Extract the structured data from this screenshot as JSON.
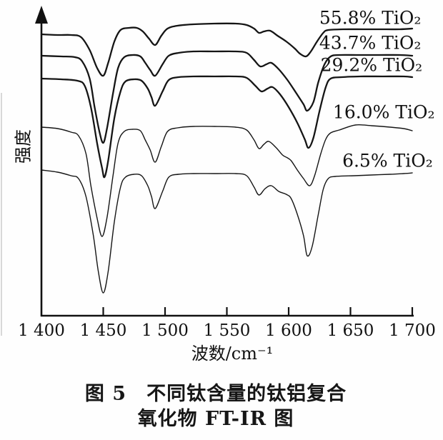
{
  "figure": {
    "caption_line1": "图 5　不同钛含量的钛铝复合",
    "caption_line2": "氧化物 FT-IR 图"
  },
  "chart_data": {
    "type": "line",
    "title": "",
    "xlabel": "波数/cm⁻¹",
    "ylabel": "强度",
    "xlim": [
      1400,
      1700
    ],
    "ylim": [
      0,
      440
    ],
    "y_units": "arbitrary intensity (no scale shown)",
    "grid": false,
    "legend_position": "labels-on-curves",
    "x_tick_labels": [
      "1 400",
      "1 450",
      "1 500",
      "1 550",
      "1 600",
      "1 650",
      "1 700"
    ],
    "x_tick_values": [
      1400,
      1450,
      1500,
      1550,
      1600,
      1650,
      1700
    ],
    "x_tick_marks": [
      1450,
      1500,
      1550,
      1600,
      1650,
      1700
    ],
    "line_color": "#151515",
    "series": [
      {
        "name": "55.8% TiO₂",
        "stroke_width": 2.3,
        "label_anchor": {
          "x": 1666,
          "y": 415
        },
        "points": [
          [
            1400,
            394
          ],
          [
            1413,
            393
          ],
          [
            1424,
            393
          ],
          [
            1432,
            390
          ],
          [
            1439,
            372
          ],
          [
            1445,
            347
          ],
          [
            1450,
            336
          ],
          [
            1454,
            354
          ],
          [
            1459,
            384
          ],
          [
            1464,
            400
          ],
          [
            1471,
            403
          ],
          [
            1477,
            403
          ],
          [
            1482,
            398
          ],
          [
            1487,
            388
          ],
          [
            1492,
            379
          ],
          [
            1497,
            392
          ],
          [
            1502,
            402
          ],
          [
            1510,
            406
          ],
          [
            1523,
            408
          ],
          [
            1540,
            409
          ],
          [
            1557,
            409
          ],
          [
            1566,
            407
          ],
          [
            1572,
            402
          ],
          [
            1576,
            396
          ],
          [
            1580,
            398
          ],
          [
            1585,
            399
          ],
          [
            1591,
            392
          ],
          [
            1598,
            384
          ],
          [
            1605,
            374
          ],
          [
            1609,
            367
          ],
          [
            1614,
            363
          ],
          [
            1618,
            370
          ],
          [
            1623,
            384
          ],
          [
            1628,
            396
          ],
          [
            1632,
            400
          ],
          [
            1644,
            401
          ],
          [
            1661,
            401
          ],
          [
            1679,
            401
          ],
          [
            1690,
            401
          ],
          [
            1700,
            402
          ]
        ]
      },
      {
        "name": "43.7% TiO₂",
        "stroke_width": 2.3,
        "label_anchor": {
          "x": 1666,
          "y": 380
        },
        "points": [
          [
            1400,
            364
          ],
          [
            1416,
            363
          ],
          [
            1427,
            362
          ],
          [
            1433,
            356
          ],
          [
            1439,
            332
          ],
          [
            1443,
            292
          ],
          [
            1447,
            257
          ],
          [
            1450,
            242
          ],
          [
            1453,
            262
          ],
          [
            1458,
            312
          ],
          [
            1462,
            347
          ],
          [
            1467,
            362
          ],
          [
            1474,
            365
          ],
          [
            1480,
            363
          ],
          [
            1484,
            354
          ],
          [
            1488,
            344
          ],
          [
            1492,
            336
          ],
          [
            1498,
            352
          ],
          [
            1503,
            364
          ],
          [
            1511,
            368
          ],
          [
            1523,
            370
          ],
          [
            1540,
            370
          ],
          [
            1557,
            370
          ],
          [
            1566,
            368
          ],
          [
            1572,
            358
          ],
          [
            1577,
            349
          ],
          [
            1582,
            352
          ],
          [
            1586,
            354
          ],
          [
            1592,
            345
          ],
          [
            1599,
            330
          ],
          [
            1606,
            312
          ],
          [
            1612,
            296
          ],
          [
            1615,
            287
          ],
          [
            1620,
            299
          ],
          [
            1624,
            327
          ],
          [
            1629,
            352
          ],
          [
            1634,
            363
          ],
          [
            1641,
            365
          ],
          [
            1656,
            365
          ],
          [
            1673,
            365
          ],
          [
            1690,
            365
          ],
          [
            1700,
            364
          ]
        ]
      },
      {
        "name": "29.2% TiO₂",
        "stroke_width": 2.3,
        "label_anchor": {
          "x": 1667,
          "y": 349
        },
        "points": [
          [
            1400,
            332
          ],
          [
            1416,
            331
          ],
          [
            1429,
            329
          ],
          [
            1435,
            322
          ],
          [
            1440,
            292
          ],
          [
            1445,
            242
          ],
          [
            1449,
            207
          ],
          [
            1451,
            194
          ],
          [
            1454,
            217
          ],
          [
            1459,
            277
          ],
          [
            1464,
            314
          ],
          [
            1468,
            328
          ],
          [
            1475,
            331
          ],
          [
            1481,
            329
          ],
          [
            1486,
            318
          ],
          [
            1489,
            306
          ],
          [
            1492,
            294
          ],
          [
            1498,
            314
          ],
          [
            1503,
            330
          ],
          [
            1511,
            334
          ],
          [
            1523,
            335
          ],
          [
            1540,
            335
          ],
          [
            1557,
            335
          ],
          [
            1566,
            333
          ],
          [
            1573,
            322
          ],
          [
            1578,
            314
          ],
          [
            1583,
            318
          ],
          [
            1587,
            320
          ],
          [
            1593,
            310
          ],
          [
            1600,
            292
          ],
          [
            1607,
            270
          ],
          [
            1613,
            247
          ],
          [
            1616,
            235
          ],
          [
            1620,
            249
          ],
          [
            1625,
            287
          ],
          [
            1630,
            320
          ],
          [
            1634,
            332
          ],
          [
            1643,
            334
          ],
          [
            1658,
            335
          ],
          [
            1676,
            335
          ],
          [
            1693,
            335
          ],
          [
            1700,
            334
          ]
        ]
      },
      {
        "name": "16.0% TiO₂",
        "stroke_width": 1.4,
        "label_anchor": {
          "x": 1677,
          "y": 283
        },
        "points": [
          [
            1400,
            264
          ],
          [
            1413,
            262
          ],
          [
            1424,
            257
          ],
          [
            1430,
            252
          ],
          [
            1436,
            227
          ],
          [
            1440,
            182
          ],
          [
            1445,
            137
          ],
          [
            1449,
            111
          ],
          [
            1453,
            137
          ],
          [
            1458,
            197
          ],
          [
            1462,
            242
          ],
          [
            1467,
            258
          ],
          [
            1474,
            261
          ],
          [
            1480,
            259
          ],
          [
            1484,
            246
          ],
          [
            1488,
            232
          ],
          [
            1492,
            215
          ],
          [
            1497,
            237
          ],
          [
            1502,
            258
          ],
          [
            1510,
            263
          ],
          [
            1523,
            265
          ],
          [
            1540,
            265
          ],
          [
            1557,
            264
          ],
          [
            1566,
            260
          ],
          [
            1572,
            246
          ],
          [
            1576,
            234
          ],
          [
            1580,
            240
          ],
          [
            1584,
            244
          ],
          [
            1590,
            235
          ],
          [
            1595,
            225
          ],
          [
            1599,
            221
          ],
          [
            1602,
            217
          ],
          [
            1607,
            204
          ],
          [
            1612,
            192
          ],
          [
            1617,
            182
          ],
          [
            1621,
            196
          ],
          [
            1626,
            227
          ],
          [
            1630,
            247
          ],
          [
            1634,
            256
          ],
          [
            1641,
            260
          ],
          [
            1654,
            267
          ],
          [
            1667,
            266
          ],
          [
            1682,
            264
          ],
          [
            1693,
            262
          ],
          [
            1700,
            259
          ]
        ]
      },
      {
        "name": "6.5% TiO₂",
        "stroke_width": 1.4,
        "label_anchor": {
          "x": 1680,
          "y": 215
        },
        "points": [
          [
            1400,
            204
          ],
          [
            1413,
            201
          ],
          [
            1424,
            196
          ],
          [
            1430,
            192
          ],
          [
            1436,
            167
          ],
          [
            1442,
            112
          ],
          [
            1446,
            62
          ],
          [
            1450,
            32
          ],
          [
            1454,
            62
          ],
          [
            1459,
            132
          ],
          [
            1464,
            180
          ],
          [
            1468,
            194
          ],
          [
            1475,
            198
          ],
          [
            1481,
            196
          ],
          [
            1486,
            182
          ],
          [
            1489,
            167
          ],
          [
            1492,
            150
          ],
          [
            1498,
            174
          ],
          [
            1503,
            194
          ],
          [
            1511,
            198
          ],
          [
            1523,
            199
          ],
          [
            1540,
            199
          ],
          [
            1557,
            199
          ],
          [
            1566,
            196
          ],
          [
            1572,
            180
          ],
          [
            1576,
            169
          ],
          [
            1581,
            178
          ],
          [
            1586,
            182
          ],
          [
            1592,
            174
          ],
          [
            1598,
            170
          ],
          [
            1602,
            164
          ],
          [
            1607,
            142
          ],
          [
            1612,
            112
          ],
          [
            1615,
            84
          ],
          [
            1619,
            97
          ],
          [
            1624,
            142
          ],
          [
            1628,
            177
          ],
          [
            1632,
            192
          ],
          [
            1638,
            195
          ],
          [
            1653,
            196
          ],
          [
            1667,
            197
          ],
          [
            1682,
            198
          ],
          [
            1693,
            199
          ],
          [
            1700,
            200
          ]
        ]
      }
    ]
  }
}
